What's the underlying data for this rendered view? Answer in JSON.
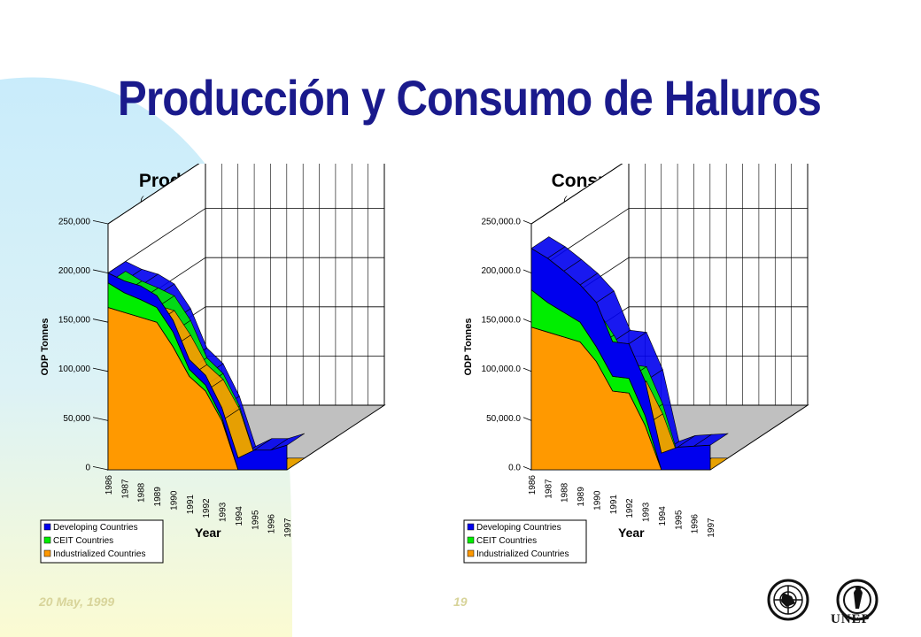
{
  "slide": {
    "title": "Producción y Consumo de Haluros",
    "footer_date": "20 May, 1999",
    "page_number": "19",
    "logo_text": "UNEP",
    "colors": {
      "title": "#1a1a8c",
      "background_blob": "#c9ecfb",
      "background_blob_bottom": "#fbfbd2",
      "footer": "#d8d49a"
    }
  },
  "chart_data": [
    {
      "type": "area",
      "stacked": true,
      "view": "3d",
      "title": "Production of Halons",
      "subtitle": "( As Reported to the Ozone Secretariat, UNEP)",
      "xlabel": "Year",
      "ylabel": "ODP Tonnes",
      "categories": [
        "1986",
        "1987",
        "1988",
        "1989",
        "1990",
        "1991",
        "1992",
        "1993",
        "1994",
        "1995",
        "1996",
        "1997"
      ],
      "ylim": [
        0,
        250000
      ],
      "yticks": [
        "0",
        "50,000",
        "100,000",
        "150,000",
        "200,000",
        "250,000"
      ],
      "grid": true,
      "legend_position": "bottom-left",
      "series": [
        {
          "name": "Industrialized Countries",
          "color": "#ff9900",
          "values": [
            165000,
            160000,
            155000,
            150000,
            125000,
            95000,
            80000,
            50000,
            0,
            0,
            0,
            0
          ]
        },
        {
          "name": "CEIT Countries",
          "color": "#00ee00",
          "values": [
            25000,
            20000,
            18000,
            15000,
            15000,
            7000,
            6000,
            3000,
            0,
            0,
            0,
            0
          ]
        },
        {
          "name": "Developing Countries",
          "color": "#0000ee",
          "values": [
            10000,
            12000,
            14000,
            12000,
            12000,
            10000,
            10000,
            10000,
            12000,
            20000,
            20000,
            25000
          ]
        }
      ]
    },
    {
      "type": "area",
      "stacked": true,
      "view": "3d",
      "title": "Consumption of Halons",
      "subtitle": "( As Reported to the Ozone Secretariat, UNEP)",
      "xlabel": "Year",
      "ylabel": "ODP Tonnes",
      "categories": [
        "1986",
        "1987",
        "1988",
        "1989",
        "1990",
        "1991",
        "1992",
        "1993",
        "1994",
        "1995",
        "1996",
        "1997"
      ],
      "ylim": [
        0,
        250000
      ],
      "yticks": [
        "0.0",
        "50,000.0",
        "100,000.0",
        "150,000.0",
        "200,000.0",
        "250,000.0"
      ],
      "grid": true,
      "legend_position": "bottom-left",
      "series": [
        {
          "name": "Industrialized Countries",
          "color": "#ff9900",
          "values": [
            145000,
            140000,
            135000,
            130000,
            110000,
            80000,
            78000,
            45000,
            0,
            0,
            0,
            0
          ]
        },
        {
          "name": "CEIT Countries",
          "color": "#00ee00",
          "values": [
            38000,
            30000,
            25000,
            20000,
            15000,
            15000,
            15000,
            10000,
            0,
            0,
            0,
            0
          ]
        },
        {
          "name": "Developing Countries",
          "color": "#0000ee",
          "values": [
            42000,
            45000,
            42000,
            38000,
            45000,
            35000,
            35000,
            35000,
            17000,
            23000,
            24000,
            25000
          ]
        }
      ]
    }
  ]
}
